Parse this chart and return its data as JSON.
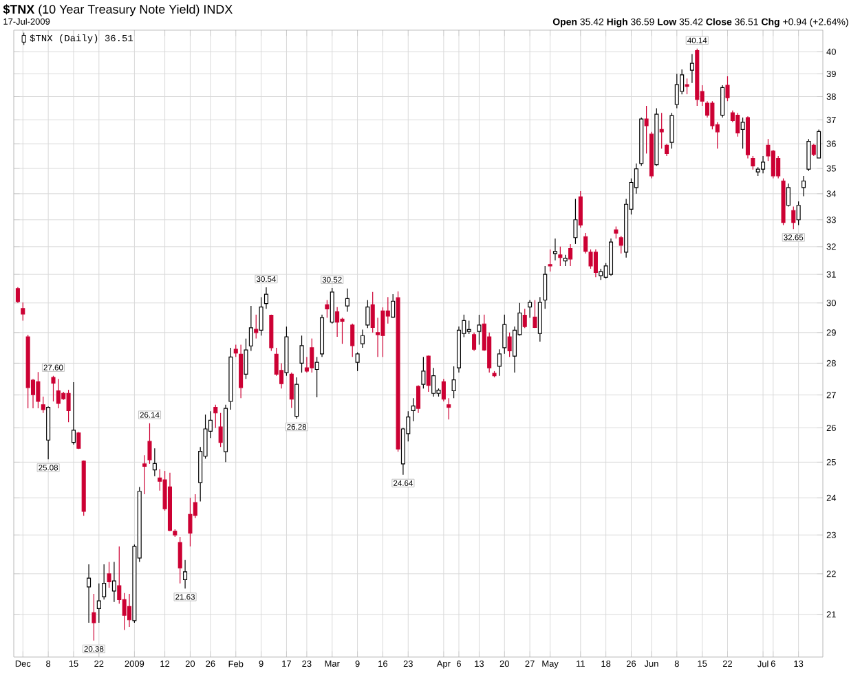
{
  "chart_data": {
    "type": "candlestick",
    "title": "**$TNX** (10 Year Treasury Note Yield) INDX",
    "subtitle": "17-Jul-2009",
    "categories": [
      null,
      "Dec",
      null,
      null,
      null,
      null,
      "8",
      null,
      null,
      null,
      null,
      "15",
      null,
      null,
      null,
      null,
      "22",
      null,
      null,
      null,
      null,
      null,
      null,
      "2009",
      null,
      null,
      null,
      null,
      null,
      "12",
      null,
      null,
      null,
      null,
      "20",
      null,
      null,
      null,
      "26",
      null,
      null,
      null,
      null,
      "Feb",
      null,
      null,
      null,
      null,
      "9",
      null,
      null,
      null,
      null,
      "17",
      null,
      null,
      null,
      "23",
      null,
      null,
      null,
      null,
      "Mar",
      null,
      null,
      null,
      null,
      "9",
      null,
      null,
      null,
      null,
      "16",
      null,
      null,
      null,
      null,
      "23",
      null,
      null,
      null,
      null,
      null,
      null,
      "Apr",
      null,
      null,
      "6",
      null,
      null,
      null,
      "13",
      null,
      null,
      null,
      null,
      "20",
      null,
      null,
      null,
      null,
      "27",
      null,
      null,
      null,
      "May",
      null,
      null,
      null,
      null,
      null,
      "11",
      null,
      null,
      null,
      null,
      "18",
      null,
      null,
      null,
      null,
      "26",
      null,
      null,
      null,
      "Jun",
      null,
      null,
      null,
      null,
      "8",
      null,
      null,
      null,
      null,
      "15",
      null,
      null,
      null,
      null,
      "22",
      null,
      null,
      null,
      null,
      null,
      null,
      "Jul",
      null,
      "6",
      null,
      null,
      null,
      null,
      "13",
      null,
      null,
      null,
      null
    ],
    "series": [
      {
        "name": "$TNX (Daily) 36.51",
        "ohlc": [
          [
            30.5,
            30.55,
            30.0,
            30.05
          ],
          [
            29.81,
            30.02,
            29.4,
            29.62
          ],
          [
            28.86,
            28.93,
            26.59,
            27.23
          ],
          [
            27.46,
            27.5,
            26.59,
            27.01
          ],
          [
            27.41,
            27.72,
            26.59,
            26.8
          ],
          [
            26.7,
            26.95,
            26.45,
            26.55
          ],
          [
            25.64,
            26.65,
            25.08,
            26.62
          ],
          [
            27.55,
            27.6,
            26.8,
            27.37
          ],
          [
            27.13,
            27.5,
            26.59,
            26.74
          ],
          [
            27.05,
            27.1,
            26.85,
            26.88
          ],
          [
            27.05,
            27.16,
            26.17,
            26.52
          ],
          [
            25.57,
            27.4,
            25.51,
            25.93
          ],
          [
            25.85,
            25.88,
            25.38,
            25.4
          ],
          [
            25.03,
            25.05,
            23.51,
            23.63
          ],
          [
            21.67,
            22.24,
            20.8,
            21.89
          ],
          [
            21.04,
            21.5,
            20.38,
            20.8
          ],
          [
            21.14,
            21.76,
            20.8,
            21.33
          ],
          [
            21.43,
            22.24,
            21.36,
            21.76
          ],
          [
            22.0,
            22.3,
            21.65,
            21.8
          ],
          [
            21.57,
            22.3,
            21.3,
            21.82
          ],
          [
            21.7,
            22.7,
            21.26,
            21.36
          ],
          [
            21.36,
            21.52,
            20.63,
            20.98
          ],
          [
            21.19,
            21.5,
            20.7,
            20.87
          ],
          [
            20.85,
            22.75,
            20.8,
            22.7
          ],
          [
            22.4,
            24.3,
            22.3,
            24.18
          ],
          [
            24.95,
            25.2,
            24.1,
            24.88
          ],
          [
            25.6,
            26.14,
            24.95,
            25.07
          ],
          [
            24.78,
            25.4,
            24.6,
            24.96
          ],
          [
            24.55,
            24.8,
            24.2,
            24.46
          ],
          [
            24.5,
            24.75,
            23.65,
            23.7
          ],
          [
            24.3,
            24.7,
            23.1,
            23.12
          ],
          [
            23.1,
            23.15,
            22.95,
            23.0
          ],
          [
            22.8,
            22.95,
            21.76,
            22.15
          ],
          [
            21.85,
            22.35,
            21.63,
            22.05
          ],
          [
            23.55,
            24.0,
            22.7,
            23.05
          ],
          [
            23.87,
            24.1,
            23.45,
            23.52
          ],
          [
            24.42,
            25.44,
            23.9,
            25.31
          ],
          [
            25.17,
            26.4,
            25.1,
            25.97
          ],
          [
            25.9,
            26.5,
            25.7,
            26.23
          ],
          [
            26.62,
            26.7,
            26.0,
            26.45
          ],
          [
            26.03,
            26.45,
            25.44,
            25.57
          ],
          [
            25.3,
            26.7,
            25.0,
            26.59
          ],
          [
            26.8,
            28.5,
            26.55,
            28.2
          ],
          [
            28.45,
            28.6,
            28.2,
            28.33
          ],
          [
            28.29,
            28.6,
            26.9,
            27.23
          ],
          [
            27.65,
            28.8,
            27.5,
            28.43
          ],
          [
            28.56,
            29.9,
            28.4,
            29.16
          ],
          [
            29.11,
            29.6,
            28.8,
            29.0
          ],
          [
            29.08,
            30.2,
            28.9,
            29.86
          ],
          [
            29.98,
            30.54,
            29.8,
            30.3
          ],
          [
            29.58,
            29.6,
            28.4,
            28.5
          ],
          [
            28.29,
            28.5,
            27.6,
            27.65
          ],
          [
            27.77,
            28.0,
            27.2,
            27.35
          ],
          [
            27.7,
            29.2,
            27.6,
            28.86
          ],
          [
            27.65,
            27.7,
            26.6,
            26.87
          ],
          [
            26.35,
            27.55,
            26.28,
            27.33
          ],
          [
            28.0,
            28.9,
            27.7,
            28.57
          ],
          [
            27.85,
            28.2,
            27.7,
            27.75
          ],
          [
            28.5,
            28.8,
            27.7,
            27.85
          ],
          [
            27.8,
            28.2,
            26.93,
            28.03
          ],
          [
            28.3,
            29.6,
            28.2,
            29.5
          ],
          [
            29.94,
            30.1,
            29.5,
            29.8
          ],
          [
            29.35,
            30.52,
            29.3,
            30.38
          ],
          [
            29.7,
            29.86,
            28.86,
            29.35
          ],
          [
            29.45,
            29.5,
            28.63,
            29.38
          ],
          [
            29.9,
            30.5,
            29.7,
            30.15
          ],
          [
            29.25,
            29.3,
            28.2,
            28.57
          ],
          [
            28.03,
            28.35,
            27.75,
            28.3
          ],
          [
            28.63,
            29.1,
            28.5,
            28.9
          ],
          [
            29.25,
            30.1,
            29.15,
            29.86
          ],
          [
            29.94,
            30.38,
            29.0,
            29.17
          ],
          [
            29.0,
            29.5,
            28.2,
            28.93
          ],
          [
            29.73,
            29.85,
            28.2,
            28.9
          ],
          [
            29.73,
            30.2,
            29.3,
            29.55
          ],
          [
            29.52,
            30.3,
            29.5,
            30.06
          ],
          [
            30.18,
            30.4,
            25.3,
            25.38
          ],
          [
            24.95,
            26.0,
            24.64,
            25.97
          ],
          [
            25.83,
            26.5,
            25.6,
            26.33
          ],
          [
            26.52,
            26.9,
            26.2,
            26.66
          ],
          [
            27.27,
            27.3,
            26.45,
            26.59
          ],
          [
            27.33,
            28.2,
            27.2,
            27.75
          ],
          [
            28.23,
            28.25,
            27.1,
            27.3
          ],
          [
            27.05,
            27.85,
            26.95,
            27.6
          ],
          [
            27.05,
            27.2,
            26.95,
            27.15
          ],
          [
            27.41,
            27.5,
            26.8,
            26.87
          ],
          [
            26.7,
            26.9,
            26.25,
            26.62
          ],
          [
            27.13,
            27.9,
            26.9,
            27.47
          ],
          [
            27.85,
            29.2,
            27.7,
            29.08
          ],
          [
            28.97,
            29.6,
            28.85,
            29.4
          ],
          [
            29.04,
            29.4,
            28.95,
            29.1
          ],
          [
            28.93,
            29.0,
            28.4,
            28.45
          ],
          [
            29.04,
            29.6,
            28.6,
            29.25
          ],
          [
            29.29,
            29.6,
            28.4,
            28.43
          ],
          [
            28.86,
            29.0,
            27.7,
            27.85
          ],
          [
            27.68,
            27.75,
            27.55,
            27.6
          ],
          [
            27.9,
            28.45,
            27.6,
            28.3
          ],
          [
            28.5,
            29.6,
            28.3,
            29.27
          ],
          [
            28.86,
            29.0,
            28.2,
            28.4
          ],
          [
            28.23,
            29.2,
            27.7,
            29.08
          ],
          [
            28.93,
            30.0,
            28.9,
            29.66
          ],
          [
            29.58,
            29.8,
            29.15,
            29.2
          ],
          [
            29.86,
            30.1,
            29.5,
            30.02
          ],
          [
            29.52,
            30.1,
            29.15,
            29.17
          ],
          [
            28.97,
            30.2,
            28.7,
            30.02
          ],
          [
            30.1,
            31.3,
            29.8,
            31.0
          ],
          [
            31.35,
            31.9,
            31.1,
            31.3
          ],
          [
            31.75,
            32.3,
            31.5,
            31.82
          ],
          [
            31.7,
            32.0,
            31.3,
            31.6
          ],
          [
            31.48,
            31.7,
            31.3,
            31.58
          ],
          [
            31.93,
            32.1,
            31.3,
            31.55
          ],
          [
            32.33,
            33.8,
            32.1,
            33.0
          ],
          [
            33.88,
            34.1,
            32.7,
            32.8
          ],
          [
            32.37,
            32.5,
            31.75,
            31.83
          ],
          [
            31.8,
            31.9,
            31.2,
            31.3
          ],
          [
            31.8,
            31.9,
            30.9,
            31.07
          ],
          [
            30.95,
            31.2,
            30.8,
            31.1
          ],
          [
            30.9,
            31.4,
            30.85,
            31.3
          ],
          [
            31.0,
            32.3,
            30.95,
            32.17
          ],
          [
            32.62,
            32.75,
            32.3,
            32.5
          ],
          [
            32.33,
            32.4,
            31.75,
            32.05
          ],
          [
            31.8,
            33.8,
            31.6,
            33.59
          ],
          [
            33.4,
            34.6,
            33.2,
            34.44
          ],
          [
            34.24,
            35.2,
            34.0,
            34.98
          ],
          [
            35.2,
            37.1,
            35.1,
            37.04
          ],
          [
            37.04,
            37.6,
            35.6,
            36.75
          ],
          [
            36.4,
            36.5,
            34.6,
            34.7
          ],
          [
            35.15,
            37.5,
            35.1,
            37.24
          ],
          [
            36.6,
            37.3,
            35.8,
            36.5
          ],
          [
            35.94,
            36.0,
            35.5,
            35.6
          ],
          [
            36.06,
            37.3,
            35.8,
            37.18
          ],
          [
            37.66,
            39.0,
            37.5,
            38.53
          ],
          [
            38.23,
            39.2,
            38.1,
            38.96
          ],
          [
            38.53,
            38.8,
            38.1,
            38.45
          ],
          [
            39.17,
            39.9,
            38.6,
            39.48
          ],
          [
            40.05,
            40.14,
            37.6,
            37.88
          ],
          [
            38.23,
            38.5,
            37.6,
            37.8
          ],
          [
            37.72,
            37.8,
            37.1,
            37.2
          ],
          [
            37.72,
            37.8,
            36.6,
            36.75
          ],
          [
            36.8,
            36.9,
            35.8,
            36.5
          ],
          [
            37.2,
            38.5,
            37.1,
            38.4
          ],
          [
            38.5,
            38.9,
            37.8,
            37.95
          ],
          [
            37.3,
            37.4,
            36.9,
            36.97
          ],
          [
            37.2,
            37.3,
            36.3,
            36.45
          ],
          [
            36.6,
            37.1,
            35.8,
            36.9
          ],
          [
            37.1,
            37.15,
            35.4,
            35.55
          ],
          [
            35.4,
            35.5,
            34.95,
            35.1
          ],
          [
            34.86,
            35.05,
            34.7,
            34.97
          ],
          [
            34.97,
            35.5,
            34.8,
            35.25
          ],
          [
            35.94,
            36.2,
            35.3,
            35.5
          ],
          [
            35.7,
            35.75,
            34.6,
            34.7
          ],
          [
            35.4,
            35.5,
            34.6,
            34.7
          ],
          [
            34.5,
            34.6,
            32.8,
            32.9
          ],
          [
            33.55,
            34.4,
            33.5,
            34.24
          ],
          [
            33.35,
            33.5,
            32.65,
            32.9
          ],
          [
            33.0,
            33.7,
            32.8,
            33.55
          ],
          [
            34.24,
            34.7,
            33.9,
            34.5
          ],
          [
            34.97,
            36.2,
            34.9,
            36.1
          ],
          [
            35.94,
            36.0,
            35.5,
            35.57
          ],
          [
            35.42,
            36.59,
            35.42,
            36.51
          ]
        ]
      }
    ],
    "ylim": [
      20,
      41
    ],
    "yticks": [
      21,
      22,
      23,
      24,
      25,
      26,
      27,
      28,
      29,
      30,
      31,
      32,
      33,
      34,
      35,
      36,
      37,
      38,
      39,
      40
    ],
    "log": "y",
    "grid": true,
    "legend": "top left",
    "annotations": [
      "**Open** 35.42 **High** 36.59 **Low** 35.42 **Close** 36.51 **Chg** +0.94 (+2.64%)",
      {
        "text": "27.60",
        "y": 27.6
      },
      {
        "text": "25.08",
        "y": 25.08
      },
      {
        "text": "20.38",
        "y": 20.38
      },
      {
        "text": "26.14",
        "y": 26.14
      },
      {
        "text": "21.63",
        "y": 21.63
      },
      {
        "text": "30.54",
        "y": 30.54
      },
      {
        "text": "26.28",
        "y": 26.28
      },
      {
        "text": "30.52",
        "y": 30.52
      },
      {
        "text": "24.64",
        "y": 24.64
      },
      {
        "text": "40.14",
        "y": 40.14
      },
      {
        "text": "32.65",
        "y": 32.65
      }
    ]
  }
}
